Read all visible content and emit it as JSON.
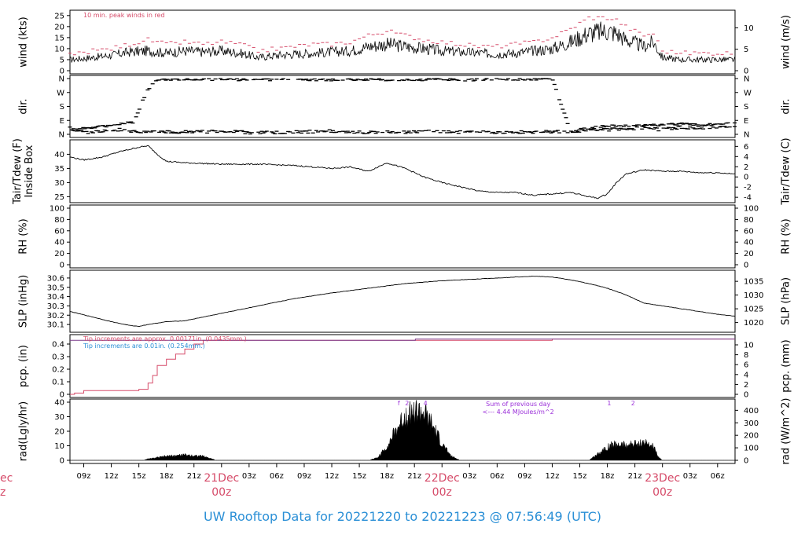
{
  "footer_title": "UW Rooftop Data for 20221220  to  20221223 @ 07:56:49  (UTC)",
  "colors": {
    "peak_red": "#d64c6a",
    "accent_blue": "#2a8fd6",
    "purple": "#9b30d9",
    "ink": "#000000"
  },
  "x_axis": {
    "ticks": [
      "09z",
      "12z",
      "15z",
      "18z",
      "21z",
      "21Dec\n00z",
      "03z",
      "06z",
      "09z",
      "12z",
      "15z",
      "18z",
      "21z",
      "22Dec\n00z",
      "03z",
      "06z",
      "09z",
      "12z",
      "15z",
      "18z",
      "21z",
      "23Dec\n00z",
      "03z",
      "06z"
    ],
    "partial_left_label": "ec\nz",
    "start_hour": 7.5,
    "end_hour": 79.9
  },
  "chart_data": [
    {
      "type": "line",
      "name": "wind",
      "ylabel_left": "wind (kts)",
      "ylabel_right": "wind (m/s)",
      "ylim": [
        0,
        26
      ],
      "yticks": [
        0,
        5,
        10,
        15,
        20,
        25
      ],
      "right_ylim": [
        0,
        13.37
      ],
      "right_yticks": [
        0,
        5,
        10
      ],
      "annotation": "10 min. peak winds in red",
      "x": [
        7.5,
        10,
        12,
        14,
        16,
        18,
        20,
        22,
        24,
        26,
        28,
        30,
        32,
        34,
        36,
        38,
        40,
        42,
        44,
        46,
        48,
        50,
        52,
        54,
        56,
        58,
        60,
        62,
        64,
        66,
        67,
        68,
        70,
        71,
        72,
        74,
        76,
        78,
        79.9
      ],
      "values": [
        5,
        6,
        7,
        8.5,
        9,
        8,
        9,
        8.5,
        9,
        8,
        6,
        7,
        7.5,
        8,
        8.5,
        9,
        11,
        12,
        11,
        10,
        9,
        8.5,
        8,
        7.5,
        8,
        9,
        10,
        13,
        17,
        18,
        17,
        14,
        11,
        13,
        6,
        5,
        5,
        5,
        5
      ],
      "peak_values": [
        7,
        9,
        10,
        12,
        14,
        12,
        13,
        12,
        13,
        12,
        9,
        10,
        11,
        12,
        12,
        13,
        16,
        18,
        16,
        14,
        13,
        12,
        11,
        11,
        12,
        13,
        15,
        19,
        24,
        24,
        23,
        20,
        16,
        17,
        9,
        8,
        8,
        8,
        8
      ]
    },
    {
      "type": "scatter",
      "name": "direction",
      "ylabel_left": "dir.",
      "ylabel_right": "dir.",
      "ycategories": [
        "N",
        "E",
        "S",
        "W",
        "N"
      ],
      "ylim": [
        0,
        360
      ],
      "x": [
        7.5,
        9,
        11,
        13,
        14.5,
        15,
        15.5,
        16,
        17,
        20,
        24,
        28,
        32,
        36,
        40,
        44,
        48,
        50,
        54,
        58,
        60,
        62,
        64,
        66,
        68,
        70,
        72,
        74,
        76,
        78,
        79.9
      ],
      "values": [
        20,
        40,
        50,
        70,
        80,
        150,
        230,
        290,
        350,
        355,
        355,
        350,
        355,
        350,
        355,
        350,
        355,
        350,
        355,
        355,
        360,
        20,
        40,
        55,
        55,
        60,
        60,
        70,
        60,
        65,
        70
      ],
      "secondary_values": [
        40,
        10,
        20,
        30,
        20,
        15,
        10,
        15,
        20,
        15,
        20,
        10,
        15,
        20,
        10,
        15,
        20,
        15,
        10,
        15,
        15,
        20,
        25,
        30,
        35,
        40,
        30,
        45,
        40,
        50,
        45
      ]
    },
    {
      "type": "line",
      "name": "temperature",
      "ylabel_left": "Tair/Tdew (F)\nInside Box",
      "ylabel_right": "Tair/Tdew (C)",
      "ylim": [
        24,
        44
      ],
      "yticks": [
        25,
        30,
        35,
        40
      ],
      "right_ylim": [
        -4.44,
        6.67
      ],
      "right_yticks": [
        -4,
        -2,
        0,
        2,
        4,
        6
      ],
      "x": [
        7.5,
        9,
        11,
        13,
        15,
        16,
        17,
        18,
        20,
        24,
        28,
        32,
        36,
        38,
        40,
        42,
        44,
        46,
        48,
        50,
        52,
        54,
        56,
        58,
        60,
        62,
        64,
        65,
        66,
        67,
        68,
        70,
        72,
        74,
        76,
        78,
        79.9
      ],
      "values": [
        39,
        38,
        39,
        41,
        42.5,
        43,
        40,
        37.5,
        37,
        36.5,
        36.5,
        36,
        35,
        35.5,
        34,
        37,
        35,
        32,
        30,
        28.5,
        27,
        26.5,
        26.5,
        25.5,
        26,
        26.5,
        25,
        24.5,
        26,
        30,
        33,
        34.5,
        34,
        34,
        33.5,
        33.5,
        33
      ]
    },
    {
      "type": "line",
      "name": "relative_humidity",
      "ylabel_left": "RH (%)",
      "ylabel_right": "RH (%)",
      "ylim": [
        0,
        100
      ],
      "yticks": [
        0,
        20,
        40,
        60,
        80,
        100
      ],
      "x": [],
      "values": []
    },
    {
      "type": "line",
      "name": "pressure",
      "ylabel_left": "SLP (inHg)",
      "ylabel_right": "SLP (hPa)",
      "ylim": [
        30.05,
        30.65
      ],
      "yticks": [
        30.1,
        30.2,
        30.3,
        30.4,
        30.5,
        30.6
      ],
      "right_ylim": [
        1017.6,
        1037.9
      ],
      "right_yticks": [
        1020,
        1025,
        1030,
        1035
      ],
      "x": [
        7.5,
        10,
        12,
        14,
        15,
        16,
        18,
        20,
        24,
        28,
        32,
        36,
        40,
        44,
        48,
        52,
        54,
        56,
        58,
        60,
        62,
        64,
        66,
        68,
        70,
        72,
        74,
        76,
        78,
        79.9
      ],
      "values": [
        30.24,
        30.18,
        30.13,
        30.09,
        30.08,
        30.1,
        30.13,
        30.14,
        30.22,
        30.3,
        30.38,
        30.44,
        30.49,
        30.54,
        30.57,
        30.59,
        30.6,
        30.61,
        30.62,
        30.61,
        30.58,
        30.54,
        30.49,
        30.42,
        30.33,
        30.3,
        30.27,
        30.24,
        30.21,
        30.19
      ]
    },
    {
      "type": "line",
      "name": "precipitation",
      "ylabel_left": "pcp. (in)",
      "ylabel_right": "pcp. (mm)",
      "ylim": [
        0,
        0.45
      ],
      "yticks": [
        0.0,
        0.1,
        0.2,
        0.3,
        0.4
      ],
      "right_ylim": [
        0,
        11.43
      ],
      "right_yticks": [
        0,
        2,
        4,
        6,
        8,
        10
      ],
      "annotations": [
        "Tip increments are approx. 0.00171in. (0.0435mm.)",
        "Tip increments are 0.01in. (0.254mm.)"
      ],
      "series": [
        {
          "name": "pink",
          "x": [
            7.5,
            8,
            9,
            14,
            15,
            16,
            16.5,
            17,
            18,
            19,
            20,
            21,
            22,
            24,
            60,
            79.9
          ],
          "values": [
            0.0,
            0.01,
            0.03,
            0.03,
            0.04,
            0.09,
            0.15,
            0.23,
            0.28,
            0.32,
            0.36,
            0.4,
            0.43,
            0.43,
            0.44,
            0.44
          ]
        },
        {
          "name": "purple",
          "x": [
            7.5,
            45,
            45.1,
            79.9
          ],
          "values": [
            0.43,
            0.43,
            0.44,
            0.44
          ]
        }
      ]
    },
    {
      "type": "area",
      "name": "radiation",
      "ylabel_left": "rad(Lgly/hr)",
      "ylabel_right": "rad (W/m^2)",
      "ylim": [
        0,
        40
      ],
      "yticks": [
        0,
        10,
        20,
        30,
        40
      ],
      "right_ylim": [
        0,
        465
      ],
      "right_yticks": [
        0,
        100,
        200,
        300,
        400
      ],
      "annotation_lines": [
        "Sum of previous day",
        "<--- 4.44 MJoules/m^2"
      ],
      "hour_markers": [
        "f",
        "2",
        "4",
        "1",
        "2"
      ],
      "x": [
        7.5,
        15.3,
        16,
        18,
        20,
        22,
        23.5,
        40,
        41,
        42,
        43,
        44,
        45,
        46,
        47,
        48,
        49,
        50,
        64,
        65,
        66,
        67,
        68,
        69,
        70,
        71,
        71.5,
        72,
        79.9
      ],
      "values": [
        0,
        0,
        1,
        3,
        4,
        3,
        0,
        0,
        2,
        10,
        22,
        33,
        36,
        35,
        25,
        12,
        3,
        0,
        0,
        5,
        10,
        12,
        11,
        12,
        13,
        10,
        3,
        0,
        0
      ]
    }
  ]
}
